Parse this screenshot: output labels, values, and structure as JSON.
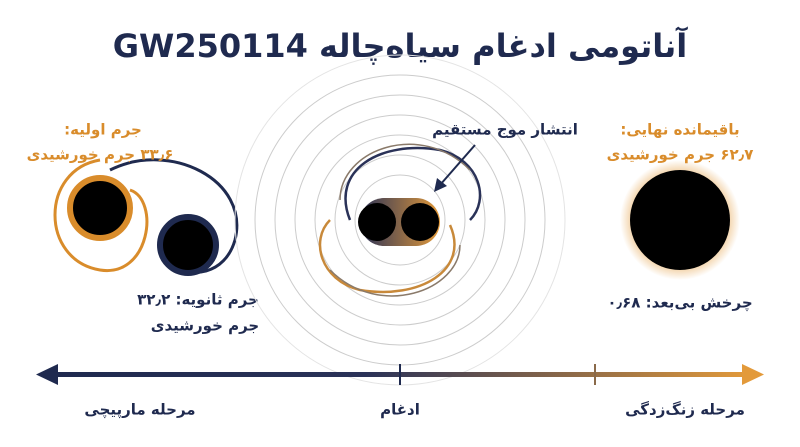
{
  "header": {
    "title": "آناتومی ادغام سیاه‌چاله GW250114"
  },
  "inspiral": {
    "primary_label": "جرم اولیه:",
    "primary_mass": "۳۳٫۶ جرم خورشیدی",
    "secondary_label": "جرم ثانویه: ۳۲٫۲",
    "secondary_unit": "جرم خورشیدی"
  },
  "merger": {
    "annotation": "انتشار موج مستقیم"
  },
  "ringdown": {
    "remnant_label": "باقیمانده نهایی:",
    "remnant_mass": "۶۲٫۷ جرم خورشیدی",
    "spin": "چرخش بی‌بعد: ۰٫۶۸"
  },
  "timeline": {
    "stages": [
      "مرحله مارپیچی",
      "ادغام",
      "مرحله زنگ‌زدگی"
    ]
  }
}
